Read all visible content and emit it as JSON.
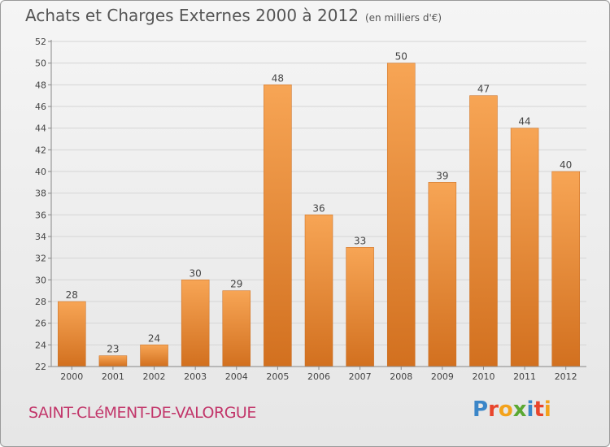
{
  "header": {
    "title": "Achats et Charges Externes 2000 à 2012",
    "unit": "(en milliers d'€)"
  },
  "footer": {
    "commune": "SAINT-CLéMENT-DE-VALORGUE",
    "logo_letters": [
      "P",
      "r",
      "o",
      "x",
      "i",
      "t",
      "i"
    ],
    "logo_colors": [
      "#3b86c8",
      "#e8452c",
      "#f3a21b",
      "#5aa832",
      "#3b86c8",
      "#e8452c",
      "#f3a21b"
    ]
  },
  "colors": {
    "bar_top": "#f7a555",
    "bar_bottom": "#d2701f",
    "grid": "#d5d5d5",
    "axis": "#888888"
  },
  "chart_data": {
    "type": "bar",
    "title": "Achats et Charges Externes 2000 à 2012",
    "xlabel": "",
    "ylabel": "",
    "categories": [
      "2000",
      "2001",
      "2002",
      "2003",
      "2004",
      "2005",
      "2006",
      "2007",
      "2008",
      "2009",
      "2010",
      "2011",
      "2012"
    ],
    "values": [
      28,
      23,
      24,
      30,
      29,
      48,
      36,
      33,
      50,
      39,
      47,
      44,
      40
    ],
    "ylim": [
      22,
      52
    ],
    "yticks": [
      22,
      24,
      26,
      28,
      30,
      32,
      34,
      36,
      38,
      40,
      42,
      44,
      46,
      48,
      50,
      52
    ],
    "grid": true,
    "legend": "none"
  }
}
